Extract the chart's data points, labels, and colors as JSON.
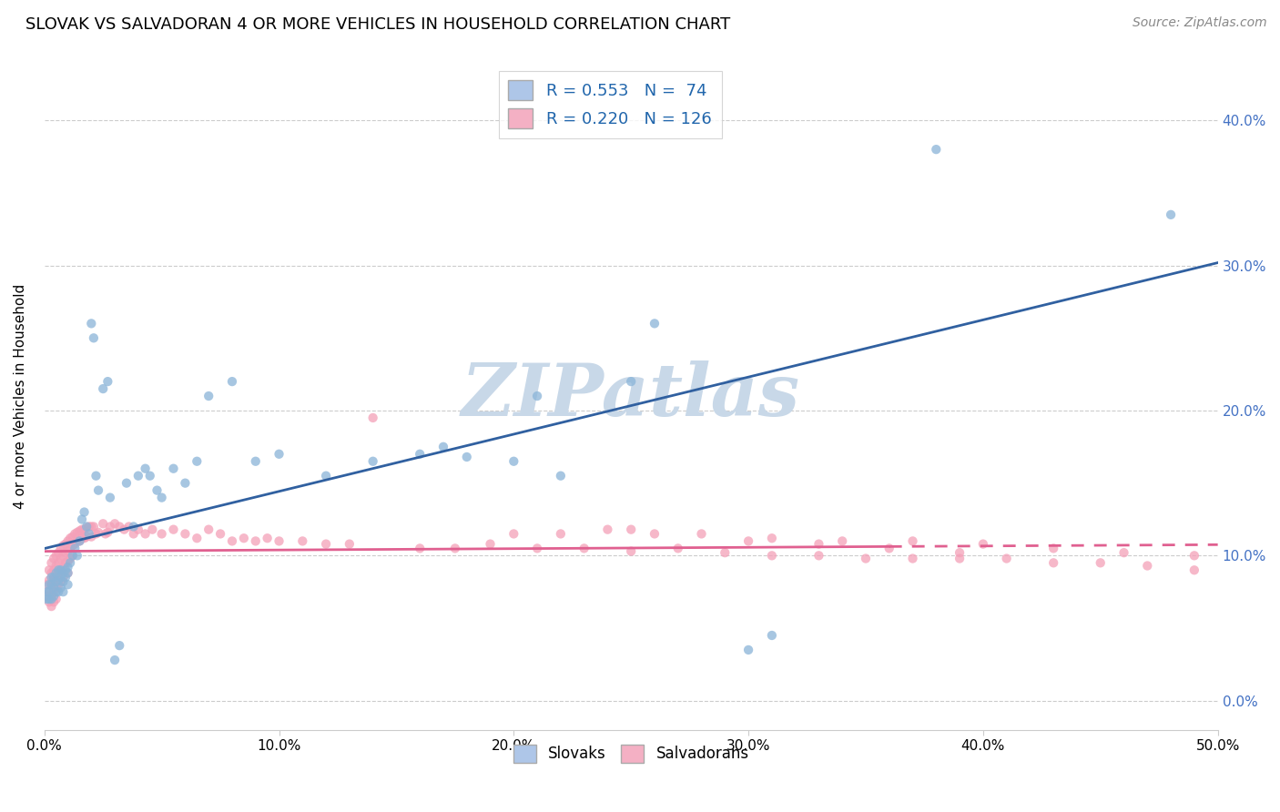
{
  "title": "SLOVAK VS SALVADORAN 4 OR MORE VEHICLES IN HOUSEHOLD CORRELATION CHART",
  "source": "Source: ZipAtlas.com",
  "ylabel_label": "4 or more Vehicles in Household",
  "xlim": [
    0.0,
    0.5
  ],
  "ylim": [
    -0.02,
    0.44
  ],
  "x_ticks": [
    0.0,
    0.1,
    0.2,
    0.3,
    0.4,
    0.5
  ],
  "y_ticks": [
    0.0,
    0.1,
    0.2,
    0.3,
    0.4
  ],
  "slovak_R": 0.553,
  "slovak_N": 74,
  "salvadoran_R": 0.22,
  "salvadoran_N": 126,
  "slovak_color": "#8ab4d8",
  "salvadoran_color": "#f4a0b8",
  "slovak_line_color": "#3060a0",
  "salvadoran_line_color": "#e06090",
  "legend_blue_fill": "#aec6e8",
  "legend_pink_fill": "#f4b0c4",
  "watermark": "ZIPatlas",
  "watermark_color": "#c8d8e8",
  "sk_x": [
    0.001,
    0.001,
    0.002,
    0.002,
    0.002,
    0.003,
    0.003,
    0.003,
    0.004,
    0.004,
    0.004,
    0.005,
    0.005,
    0.005,
    0.006,
    0.006,
    0.006,
    0.007,
    0.007,
    0.007,
    0.008,
    0.008,
    0.008,
    0.009,
    0.009,
    0.01,
    0.01,
    0.01,
    0.011,
    0.012,
    0.013,
    0.014,
    0.015,
    0.016,
    0.017,
    0.018,
    0.019,
    0.02,
    0.021,
    0.022,
    0.023,
    0.025,
    0.027,
    0.028,
    0.03,
    0.032,
    0.035,
    0.038,
    0.04,
    0.043,
    0.045,
    0.048,
    0.05,
    0.055,
    0.06,
    0.065,
    0.07,
    0.08,
    0.09,
    0.1,
    0.12,
    0.14,
    0.16,
    0.17,
    0.18,
    0.2,
    0.21,
    0.22,
    0.25,
    0.26,
    0.3,
    0.31,
    0.38,
    0.48
  ],
  "sk_y": [
    0.075,
    0.07,
    0.08,
    0.075,
    0.07,
    0.085,
    0.08,
    0.07,
    0.085,
    0.078,
    0.072,
    0.088,
    0.082,
    0.075,
    0.09,
    0.083,
    0.075,
    0.09,
    0.085,
    0.078,
    0.088,
    0.082,
    0.075,
    0.09,
    0.085,
    0.092,
    0.088,
    0.08,
    0.095,
    0.1,
    0.105,
    0.1,
    0.11,
    0.125,
    0.13,
    0.12,
    0.115,
    0.26,
    0.25,
    0.155,
    0.145,
    0.215,
    0.22,
    0.14,
    0.028,
    0.038,
    0.15,
    0.12,
    0.155,
    0.16,
    0.155,
    0.145,
    0.14,
    0.16,
    0.15,
    0.165,
    0.21,
    0.22,
    0.165,
    0.17,
    0.155,
    0.165,
    0.17,
    0.175,
    0.168,
    0.165,
    0.21,
    0.155,
    0.22,
    0.26,
    0.035,
    0.045,
    0.38,
    0.335
  ],
  "salv_x": [
    0.001,
    0.001,
    0.002,
    0.002,
    0.002,
    0.002,
    0.003,
    0.003,
    0.003,
    0.003,
    0.003,
    0.004,
    0.004,
    0.004,
    0.004,
    0.004,
    0.005,
    0.005,
    0.005,
    0.005,
    0.005,
    0.006,
    0.006,
    0.006,
    0.006,
    0.007,
    0.007,
    0.007,
    0.007,
    0.008,
    0.008,
    0.008,
    0.008,
    0.009,
    0.009,
    0.009,
    0.01,
    0.01,
    0.01,
    0.01,
    0.011,
    0.011,
    0.011,
    0.012,
    0.012,
    0.012,
    0.013,
    0.013,
    0.014,
    0.014,
    0.015,
    0.015,
    0.016,
    0.016,
    0.017,
    0.017,
    0.018,
    0.018,
    0.019,
    0.02,
    0.02,
    0.021,
    0.022,
    0.023,
    0.025,
    0.026,
    0.027,
    0.028,
    0.03,
    0.032,
    0.034,
    0.036,
    0.038,
    0.04,
    0.043,
    0.046,
    0.05,
    0.055,
    0.06,
    0.065,
    0.07,
    0.075,
    0.08,
    0.085,
    0.09,
    0.095,
    0.1,
    0.11,
    0.12,
    0.13,
    0.14,
    0.16,
    0.175,
    0.19,
    0.21,
    0.23,
    0.25,
    0.27,
    0.29,
    0.31,
    0.33,
    0.35,
    0.37,
    0.39,
    0.41,
    0.43,
    0.45,
    0.47,
    0.49,
    0.2,
    0.22,
    0.25,
    0.28,
    0.31,
    0.34,
    0.37,
    0.4,
    0.43,
    0.46,
    0.49,
    0.24,
    0.26,
    0.3,
    0.33,
    0.36,
    0.39
  ],
  "salv_y": [
    0.08,
    0.072,
    0.09,
    0.083,
    0.075,
    0.068,
    0.095,
    0.088,
    0.08,
    0.072,
    0.065,
    0.098,
    0.09,
    0.083,
    0.075,
    0.068,
    0.1,
    0.093,
    0.085,
    0.078,
    0.07,
    0.102,
    0.095,
    0.088,
    0.08,
    0.105,
    0.098,
    0.09,
    0.082,
    0.107,
    0.1,
    0.092,
    0.085,
    0.108,
    0.102,
    0.095,
    0.11,
    0.103,
    0.096,
    0.088,
    0.112,
    0.105,
    0.098,
    0.113,
    0.107,
    0.1,
    0.115,
    0.108,
    0.116,
    0.11,
    0.117,
    0.11,
    0.118,
    0.112,
    0.118,
    0.112,
    0.119,
    0.113,
    0.12,
    0.12,
    0.113,
    0.12,
    0.115,
    0.116,
    0.122,
    0.115,
    0.116,
    0.12,
    0.122,
    0.12,
    0.118,
    0.12,
    0.115,
    0.118,
    0.115,
    0.118,
    0.115,
    0.118,
    0.115,
    0.112,
    0.118,
    0.115,
    0.11,
    0.112,
    0.11,
    0.112,
    0.11,
    0.11,
    0.108,
    0.108,
    0.195,
    0.105,
    0.105,
    0.108,
    0.105,
    0.105,
    0.103,
    0.105,
    0.102,
    0.1,
    0.1,
    0.098,
    0.098,
    0.098,
    0.098,
    0.095,
    0.095,
    0.093,
    0.09,
    0.115,
    0.115,
    0.118,
    0.115,
    0.112,
    0.11,
    0.11,
    0.108,
    0.105,
    0.102,
    0.1,
    0.118,
    0.115,
    0.11,
    0.108,
    0.105,
    0.102
  ]
}
